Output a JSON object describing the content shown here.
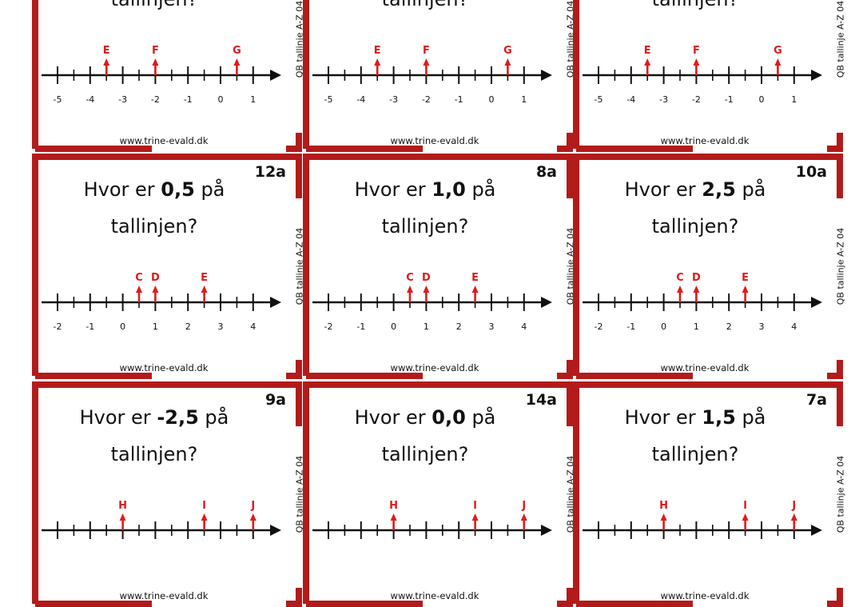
{
  "colors": {
    "frame": "#b31b1b",
    "arrow": "#e01b1b",
    "text": "#111111"
  },
  "website": "www.trine-evald.dk",
  "side_label": "QB tallinje A-Z 04",
  "rows": [
    {
      "number_line": {
        "tick_labels": [
          "-5",
          "-4",
          "-3",
          "-2",
          "-1",
          "0",
          "1"
        ],
        "range": [
          -5,
          1
        ],
        "markers": [
          {
            "letter": "E",
            "value": -3.5
          },
          {
            "letter": "F",
            "value": -2
          },
          {
            "letter": "G",
            "value": 0.5
          }
        ]
      },
      "cards": [
        {
          "code": "",
          "q_pre": "",
          "q_num": "",
          "q_post": "",
          "q_line2": "tallinjen?"
        },
        {
          "code": "",
          "q_pre": "",
          "q_num": "",
          "q_post": "",
          "q_line2": "tallinjen?"
        },
        {
          "code": "",
          "q_pre": "",
          "q_num": "",
          "q_post": "",
          "q_line2": "tallinjen?"
        }
      ]
    },
    {
      "number_line": {
        "tick_labels": [
          "-2",
          "-1",
          "0",
          "1",
          "2",
          "3",
          "4"
        ],
        "range": [
          -2,
          4
        ],
        "markers": [
          {
            "letter": "C",
            "value": 0.5
          },
          {
            "letter": "D",
            "value": 1
          },
          {
            "letter": "E",
            "value": 2.5
          }
        ]
      },
      "cards": [
        {
          "code": "12a",
          "q_pre": "Hvor er ",
          "q_num": "0,5",
          "q_post": " på",
          "q_line2": "tallinjen?"
        },
        {
          "code": "8a",
          "q_pre": "Hvor er ",
          "q_num": "1,0",
          "q_post": " på",
          "q_line2": "tallinjen?"
        },
        {
          "code": "10a",
          "q_pre": "Hvor er ",
          "q_num": "2,5",
          "q_post": " på",
          "q_line2": "tallinjen?"
        }
      ]
    },
    {
      "number_line": {
        "tick_labels": [],
        "range": [
          -5,
          1
        ],
        "markers": [
          {
            "letter": "H",
            "value": -3
          },
          {
            "letter": "I",
            "value": -0.5
          },
          {
            "letter": "J",
            "value": 1
          }
        ]
      },
      "cards": [
        {
          "code": "9a",
          "q_pre": "Hvor er ",
          "q_num": "-2,5",
          "q_post": " på",
          "q_line2": "tallinjen?"
        },
        {
          "code": "14a",
          "q_pre": "Hvor er ",
          "q_num": "0,0",
          "q_post": " på",
          "q_line2": "tallinjen?"
        },
        {
          "code": "7a",
          "q_pre": "Hvor er ",
          "q_num": "1,5",
          "q_post": " på",
          "q_line2": "tallinjen?"
        }
      ]
    }
  ]
}
